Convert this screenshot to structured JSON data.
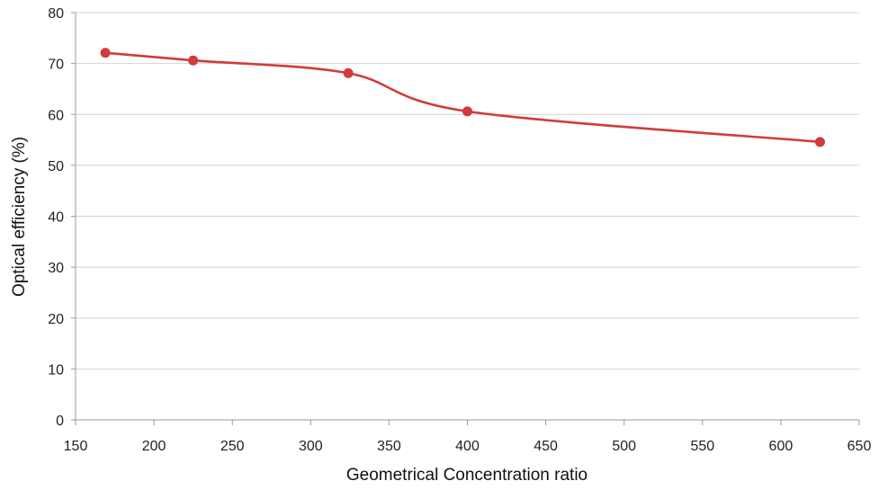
{
  "chart_data": {
    "type": "line",
    "title": "",
    "xlabel": "Geometrical Concentration ratio",
    "ylabel": "Optical efficiency (%)",
    "xlim": [
      150,
      650
    ],
    "ylim": [
      0,
      80
    ],
    "xticks": [
      150,
      200,
      250,
      300,
      350,
      400,
      450,
      500,
      550,
      600,
      650
    ],
    "yticks": [
      0,
      10,
      20,
      30,
      40,
      50,
      60,
      70,
      80
    ],
    "xtick_labels": [
      "150",
      "200",
      "250",
      "300",
      "350",
      "400",
      "450",
      "500",
      "550",
      "600",
      "650"
    ],
    "ytick_labels": [
      "0",
      "10",
      "20",
      "30",
      "40",
      "50",
      "60",
      "70",
      "80"
    ],
    "grid": {
      "horizontal": true,
      "vertical": false
    },
    "legend": "none",
    "smooth": true,
    "series": [
      {
        "color": "#d13b3b",
        "x": [
          169,
          225,
          324,
          400,
          625
        ],
        "y": [
          72.1,
          70.6,
          68.1,
          60.6,
          54.6
        ]
      }
    ]
  }
}
